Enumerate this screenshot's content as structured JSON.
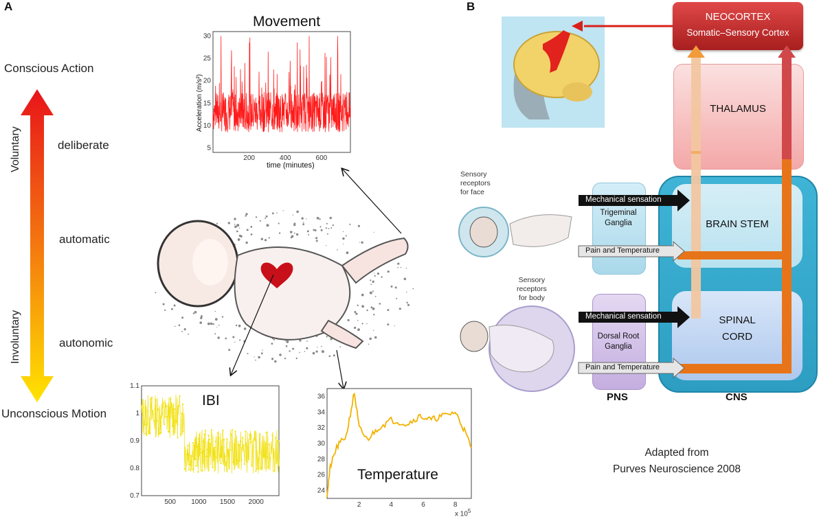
{
  "panel_a": {
    "letter": "A",
    "scale": {
      "top_label": "Conscious Action",
      "bottom_label": "Unconscious Motion",
      "voluntary": "Voluntary",
      "involuntary": "Involuntary",
      "levels": [
        "deliberate",
        "automatic",
        "autonomic"
      ]
    },
    "movement_plot": {
      "title": "Movement",
      "xlabel": "time (minutes)",
      "ylabel": "Acceleration (m/s²)",
      "xticks": [
        "200",
        "400",
        "600"
      ],
      "yticks": [
        "5",
        "10",
        "15",
        "20",
        "25",
        "30"
      ],
      "color": "#ff1a1a"
    },
    "ibi_plot": {
      "title": "IBI",
      "xticks": [
        "500",
        "1000",
        "1500",
        "2000"
      ],
      "yticks": [
        "0.7",
        "0.8",
        "0.9",
        "1",
        "1.1"
      ],
      "color": "#f2e21a"
    },
    "temp_plot": {
      "title": "Temperature",
      "xticks": [
        "2",
        "4",
        "6",
        "8"
      ],
      "yticks": [
        "24",
        "26",
        "28",
        "30",
        "32",
        "34",
        "36"
      ],
      "x_multiplier": "x 10",
      "x_exponent": "5",
      "color": "#f2b200"
    }
  },
  "panel_b": {
    "letter": "B",
    "neocortex_title": "NEOCORTEX",
    "neocortex_sub": "Somatic–Sensory Cortex",
    "thalamus": "THALAMUS",
    "brain_stem": "BRAIN STEM",
    "spinal_cord_1": "SPINAL",
    "spinal_cord_2": "CORD",
    "trigeminal_1": "Trigeminal",
    "trigeminal_2": "Ganglia",
    "dorsal_1": "Dorsal Root",
    "dorsal_2": "Ganglia",
    "mechanical": "Mechanical sensation",
    "pain_temp": "Pain and Temperature",
    "face_receptors": [
      "Sensory",
      "receptors",
      "for face"
    ],
    "body_receptors": [
      "Sensory",
      "receptors",
      "for body"
    ],
    "pns": "PNS",
    "cns": "CNS",
    "credit_1": "Adapted from",
    "credit_2": "Purves Neuroscience 2008"
  },
  "chart_data": [
    {
      "type": "line",
      "title": "Movement",
      "xlabel": "time (minutes)",
      "ylabel": "Acceleration (m/s²)",
      "xlim": [
        0,
        760
      ],
      "ylim": [
        4,
        31
      ],
      "note": "noisy signal fluctuating mostly between about 8 and 20 with spikes up to about 30"
    },
    {
      "type": "scatter",
      "title": "IBI",
      "xlim": [
        0,
        2400
      ],
      "ylim": [
        0.7,
        1.1
      ],
      "note": "values around 1.0 for the first ~750 beats, dropping to about 0.85 with scatter 0.75–1.0"
    },
    {
      "type": "line",
      "title": "Temperature",
      "xlim": [
        0,
        900000
      ],
      "ylim": [
        23,
        37
      ],
      "x": [
        0,
        20000,
        60000,
        120000,
        170000,
        200000,
        250000,
        320000,
        400000,
        500000,
        580000,
        650000,
        720000,
        800000,
        850000,
        900000
      ],
      "y": [
        23.5,
        27,
        29.5,
        31,
        36.5,
        32,
        30.5,
        32,
        33,
        32.5,
        33.5,
        33,
        33.5,
        34,
        32,
        29.5
      ]
    }
  ]
}
